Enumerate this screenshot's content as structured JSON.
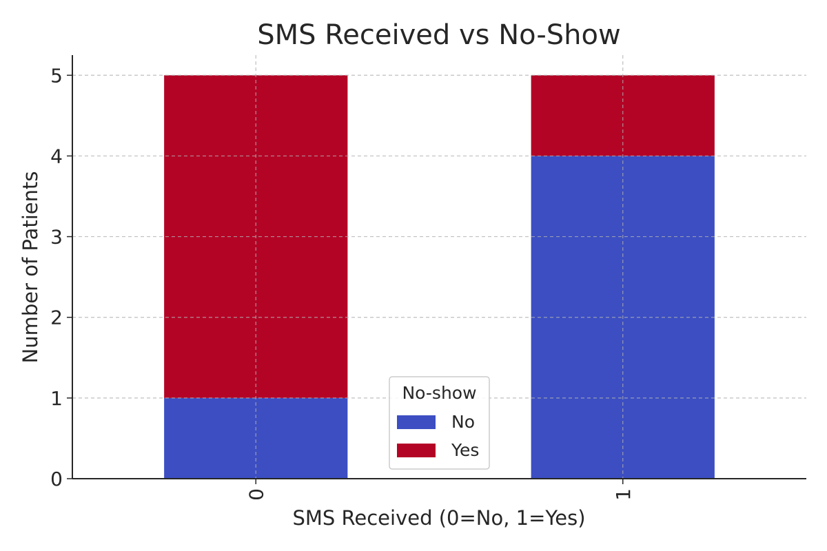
{
  "chart_data": {
    "type": "bar",
    "stacked": true,
    "title": "SMS Received vs No-Show",
    "xlabel": "SMS Received (0=No, 1=Yes)",
    "ylabel": "Number of Patients",
    "categories": [
      "0",
      "1"
    ],
    "series": [
      {
        "name": "No",
        "values": [
          1,
          4
        ],
        "color": "#3c4ec2"
      },
      {
        "name": "Yes",
        "values": [
          4,
          1
        ],
        "color": "#b40426"
      }
    ],
    "ylim": [
      0,
      5.25
    ],
    "yticks": [
      "0",
      "1",
      "2",
      "3",
      "4",
      "5"
    ],
    "grid": true,
    "legend": {
      "title": "No-show",
      "placement": "bottom-center"
    }
  }
}
